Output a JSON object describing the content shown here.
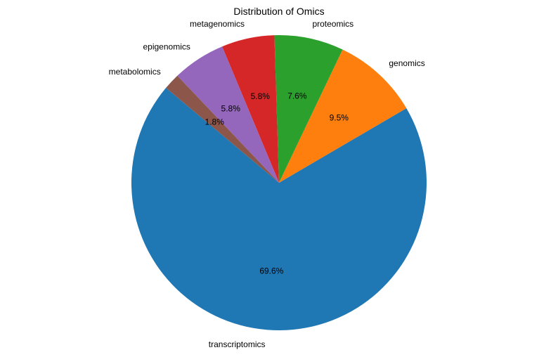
{
  "chart_data": {
    "type": "pie",
    "title": "Distribution of Omics",
    "categories": [
      "transcriptomics",
      "genomics",
      "proteomics",
      "metagenomics",
      "epigenomics",
      "metabolomics"
    ],
    "values": [
      69.6,
      9.5,
      7.6,
      5.8,
      5.8,
      1.8
    ],
    "percent_labels": [
      "69.6%",
      "9.5%",
      "7.6%",
      "5.8%",
      "5.8%",
      "1.8%"
    ],
    "colors": [
      "#1f77b4",
      "#ff7f0e",
      "#2ca02c",
      "#d62728",
      "#9467bd",
      "#8c564b"
    ],
    "start_angle_deg": 140,
    "direction": "counterclockwise",
    "legend": "none"
  }
}
